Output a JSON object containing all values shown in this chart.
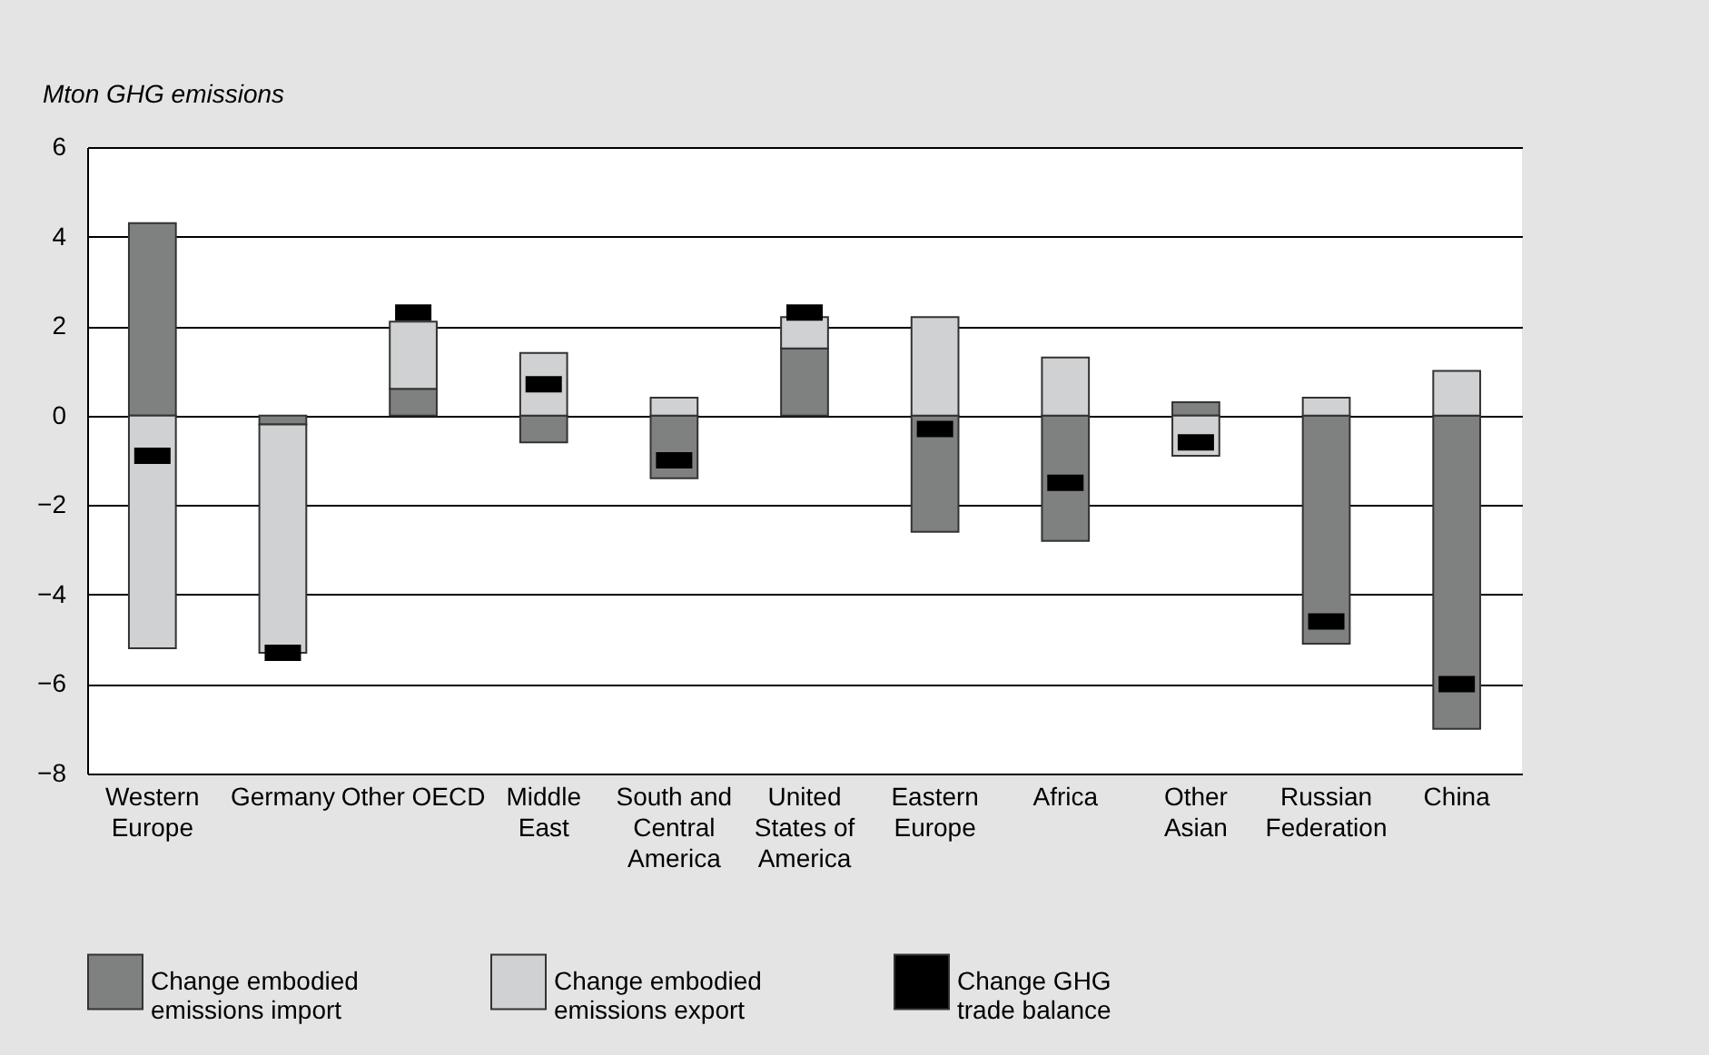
{
  "chart_data": {
    "type": "bar",
    "ylabel": "Mton GHG emissions",
    "stacked": true,
    "categories": [
      "Western Europe",
      "Germany",
      "Other OECD",
      "Middle East",
      "South and Central America",
      "United States of America",
      "Eastern Europe",
      "Africa",
      "Other Asian",
      "Russian Federation",
      "China"
    ],
    "series": [
      {
        "name": "Change embodied emissions import",
        "color": "#7f8080",
        "values": [
          4.3,
          -0.2,
          0.6,
          -0.6,
          -1.4,
          1.5,
          -2.6,
          -2.8,
          0.3,
          -5.1,
          -7.0
        ]
      },
      {
        "name": "Change embodied emissions export",
        "color": "#d0d1d3",
        "values": [
          -5.2,
          -5.1,
          1.5,
          1.4,
          0.4,
          0.7,
          2.2,
          1.3,
          -0.9,
          0.4,
          1.0
        ]
      },
      {
        "name": "Change GHG trade balance",
        "color": "#000000",
        "type": "scatter",
        "marker": "square",
        "values": [
          -0.9,
          -5.3,
          2.3,
          0.7,
          -1.0,
          2.3,
          -0.3,
          -1.5,
          -0.6,
          -4.6,
          -6.0
        ]
      }
    ],
    "ylim": [
      -8,
      6
    ],
    "yticks": [
      -8,
      -6,
      -4,
      -2,
      0,
      2,
      4,
      6
    ],
    "grid": "y",
    "legend": "bottom"
  }
}
